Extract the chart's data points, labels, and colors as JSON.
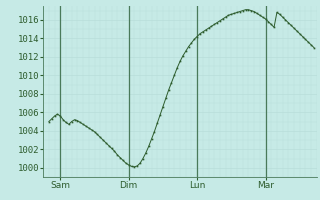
{
  "background_color": "#c6eae6",
  "plot_bg_color": "#c6eae6",
  "line_color": "#2d5c2d",
  "marker_color": "#2d5c2d",
  "grid_color_minor": "#b8deda",
  "grid_color_major": "#98c8c2",
  "tick_label_color": "#2d5c2d",
  "vline_color": "#4a7a5a",
  "ylabel_values": [
    1000,
    1002,
    1004,
    1006,
    1008,
    1010,
    1012,
    1014,
    1016
  ],
  "ylim": [
    999.0,
    1017.5
  ],
  "xlim": [
    -2,
    94
  ],
  "xtick_positions": [
    4,
    28,
    52,
    76
  ],
  "xtick_labels": [
    "Sam",
    "Dim",
    "Lun",
    "Mar"
  ],
  "vline_positions": [
    4,
    28,
    52,
    76
  ],
  "pressure_data": [
    1005.0,
    1005.3,
    1005.6,
    1005.8,
    1005.6,
    1005.2,
    1004.9,
    1004.7,
    1005.0,
    1005.2,
    1005.1,
    1004.9,
    1004.7,
    1004.5,
    1004.3,
    1004.1,
    1003.9,
    1003.6,
    1003.3,
    1003.0,
    1002.7,
    1002.4,
    1002.1,
    1001.8,
    1001.4,
    1001.1,
    1000.8,
    1000.5,
    1000.3,
    1000.15,
    1000.1,
    1000.2,
    1000.5,
    1001.0,
    1001.6,
    1002.3,
    1003.1,
    1003.9,
    1004.8,
    1005.7,
    1006.6,
    1007.5,
    1008.4,
    1009.2,
    1010.0,
    1010.8,
    1011.5,
    1012.1,
    1012.6,
    1013.1,
    1013.5,
    1013.9,
    1014.2,
    1014.5,
    1014.7,
    1014.9,
    1015.1,
    1015.3,
    1015.5,
    1015.7,
    1015.9,
    1016.1,
    1016.3,
    1016.5,
    1016.6,
    1016.7,
    1016.8,
    1016.9,
    1017.0,
    1017.1,
    1017.1,
    1017.0,
    1016.9,
    1016.7,
    1016.5,
    1016.3,
    1016.1,
    1015.8,
    1015.5,
    1015.2,
    1016.8,
    1016.6,
    1016.3,
    1016.0,
    1015.7,
    1015.4,
    1015.1,
    1014.8,
    1014.5,
    1014.2,
    1013.9,
    1013.6,
    1013.3,
    1013.0
  ],
  "tick_fontsize": 6.5,
  "marker_size": 1.2,
  "line_width": 0.7
}
